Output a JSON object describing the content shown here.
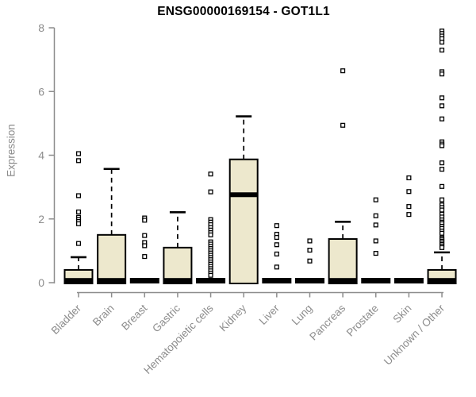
{
  "colors": {
    "background": "#FFFFFF",
    "box_fill": "#EDE8CD",
    "box_border": "#000000",
    "median": "#000000",
    "axis": "#8C8C8C",
    "tick_label": "#8C8C8C",
    "title": "#000000"
  },
  "chart_data": {
    "type": "boxplot",
    "title": "ENSG00000169154 - GOT1L1",
    "xlabel": "",
    "ylabel": "Expression",
    "ylim": [
      0,
      8
    ],
    "yticks": [
      0,
      2,
      4,
      6,
      8
    ],
    "grid": false,
    "categories": [
      "Bladder",
      "Brain",
      "Breast",
      "Gastric",
      "Hematopoietic cells",
      "Kidney",
      "Liver",
      "Lung",
      "Pancreas",
      "Prostate",
      "Skin",
      "Unknown / Other"
    ],
    "boxes": [
      {
        "category": "Bladder",
        "q1": 0,
        "median": 0.02,
        "q3": 0.4,
        "whisker_low": 0,
        "whisker_high": 0.8,
        "outliers": [
          4.05,
          3.83,
          2.73,
          2.22,
          2.05,
          1.99,
          1.92,
          1.85,
          1.23
        ]
      },
      {
        "category": "Brain",
        "q1": 0,
        "median": 0.02,
        "q3": 1.5,
        "whisker_low": 0,
        "whisker_high": 3.57,
        "outliers": []
      },
      {
        "category": "Breast",
        "q1": 0,
        "median": 0,
        "q3": 0,
        "whisker_low": 0,
        "whisker_high": 0,
        "outliers": [
          2.03,
          1.96,
          1.48,
          1.26,
          1.16,
          0.82
        ]
      },
      {
        "category": "Gastric",
        "q1": 0,
        "median": 0.02,
        "q3": 1.1,
        "whisker_low": 0,
        "whisker_high": 2.21,
        "outliers": []
      },
      {
        "category": "Hematopoietic cells",
        "q1": 0,
        "median": 0,
        "q3": 0,
        "whisker_low": 0,
        "whisker_high": 0,
        "outliers": [
          3.41,
          2.85,
          1.98,
          1.9,
          1.82,
          1.73,
          1.65,
          1.57,
          1.5,
          1.28,
          1.21,
          1.14,
          1.07,
          1.0,
          0.93,
          0.86,
          0.79,
          0.72,
          0.65,
          0.58,
          0.51,
          0.44,
          0.37,
          0.3,
          0.23
        ]
      },
      {
        "category": "Kidney",
        "q1": 0,
        "median": 2.71,
        "q3": 3.87,
        "whisker_low": 0,
        "whisker_high": 5.22,
        "outliers": []
      },
      {
        "category": "Liver",
        "q1": 0,
        "median": 0,
        "q3": 0,
        "whisker_low": 0,
        "whisker_high": 0,
        "outliers": [
          1.79,
          1.52,
          1.42,
          1.19,
          0.9,
          0.49
        ]
      },
      {
        "category": "Lung",
        "q1": 0,
        "median": 0,
        "q3": 0,
        "whisker_low": 0,
        "whisker_high": 0,
        "outliers": [
          1.31,
          1.02,
          0.68
        ]
      },
      {
        "category": "Pancreas",
        "q1": 0,
        "median": 0.02,
        "q3": 1.37,
        "whisker_low": 0,
        "whisker_high": 1.91,
        "outliers": [
          6.65,
          4.94
        ]
      },
      {
        "category": "Prostate",
        "q1": 0,
        "median": 0,
        "q3": 0,
        "whisker_low": 0,
        "whisker_high": 0,
        "outliers": [
          2.6,
          2.1,
          1.81,
          1.31,
          0.92
        ]
      },
      {
        "category": "Skin",
        "q1": 0,
        "median": 0,
        "q3": 0,
        "whisker_low": 0,
        "whisker_high": 0,
        "outliers": [
          3.29,
          2.86,
          2.39,
          2.14
        ]
      },
      {
        "category": "Unknown / Other",
        "q1": 0,
        "median": 0.02,
        "q3": 0.4,
        "whisker_low": 0,
        "whisker_high": 0.95,
        "outliers": [
          7.9,
          7.82,
          7.74,
          7.66,
          7.55,
          7.3,
          6.62,
          6.55,
          5.8,
          5.55,
          5.14,
          4.42,
          4.35,
          4.3,
          3.76,
          3.56,
          3.02,
          2.6,
          2.44,
          2.36,
          2.28,
          2.15,
          2.06,
          1.97,
          1.9,
          1.85,
          1.77,
          1.7,
          1.62,
          1.55,
          1.4,
          1.35,
          1.3,
          1.25,
          1.2,
          1.15,
          1.1
        ]
      }
    ],
    "legend": null
  }
}
